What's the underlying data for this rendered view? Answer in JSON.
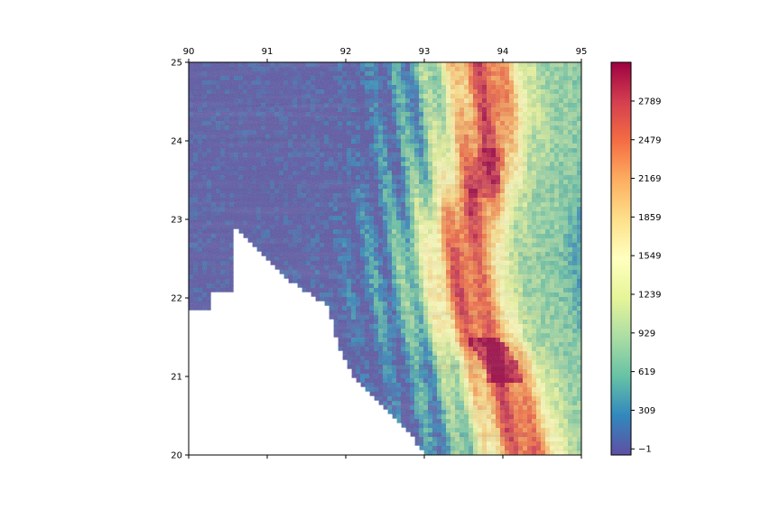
{
  "chart_data": {
    "type": "heatmap",
    "title": "",
    "xlabel": "",
    "ylabel": "",
    "colormap": "Spectral_r",
    "x_ticks": [
      90,
      91,
      92,
      93,
      94,
      95
    ],
    "x_tick_position": "top",
    "xlim": [
      90,
      95
    ],
    "y_ticks": [
      25,
      24,
      23,
      22,
      21,
      20
    ],
    "ylim": [
      20,
      25
    ],
    "colorbar": {
      "ticks": [
        -1,
        309,
        619,
        929,
        1239,
        1549,
        1859,
        2169,
        2479,
        2789
      ],
      "tick_labels": [
        "−1",
        "309",
        "619",
        "929",
        "1239",
        "1549",
        "1859",
        "2169",
        "2479",
        "2789"
      ],
      "range": [
        -50,
        3100
      ]
    },
    "grid": false,
    "ridge_crest": [
      [
        25.0,
        93.75
      ],
      [
        24.5,
        93.85
      ],
      [
        24.0,
        93.8
      ],
      [
        23.5,
        93.75
      ],
      [
        23.0,
        93.6
      ],
      [
        22.5,
        93.55
      ],
      [
        22.0,
        93.6
      ],
      [
        21.5,
        93.75
      ],
      [
        21.2,
        93.95
      ],
      [
        20.5,
        94.15
      ],
      [
        20.0,
        94.3
      ]
    ],
    "peak_elevation": 3100
  }
}
